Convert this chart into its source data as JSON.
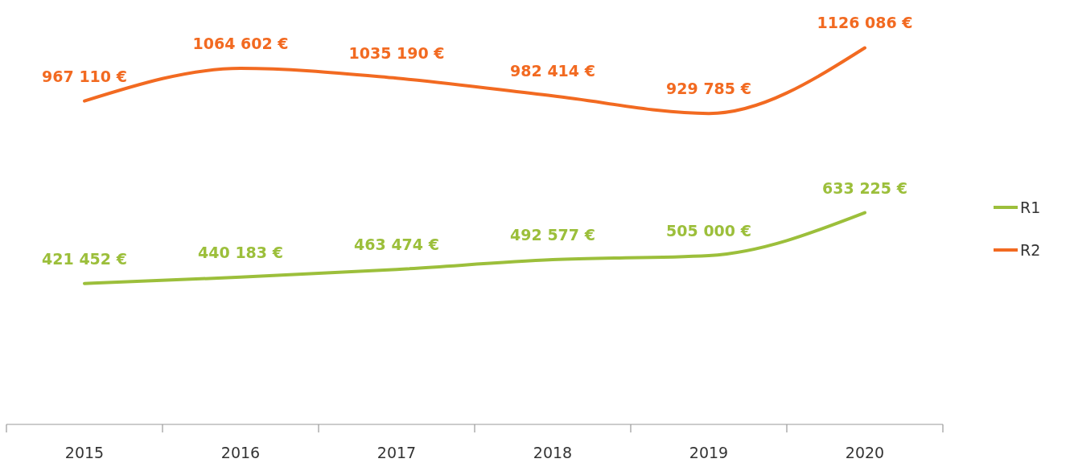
{
  "chart_data": {
    "type": "line",
    "categories": [
      "2015",
      "2016",
      "2017",
      "2018",
      "2019",
      "2020"
    ],
    "series": [
      {
        "name": "R1",
        "color": "#9cbf3b",
        "values": [
          421452,
          440183,
          463474,
          492577,
          505000,
          633225
        ],
        "value_labels": [
          "421 452 €",
          "440 183 €",
          "463 474 €",
          "492 577 €",
          "505 000 €",
          "633 225 €"
        ]
      },
      {
        "name": "R2",
        "color": "#f26a21",
        "values": [
          967110,
          1064602,
          1035190,
          982414,
          929785,
          1126086
        ],
        "value_labels": [
          "967 110 €",
          "1064 602 €",
          "1035 190 €",
          "982 414 €",
          "929 785 €",
          "1126 086 €"
        ]
      }
    ],
    "legend": "right",
    "grid": false,
    "marker": "none",
    "line_style": "solid"
  }
}
